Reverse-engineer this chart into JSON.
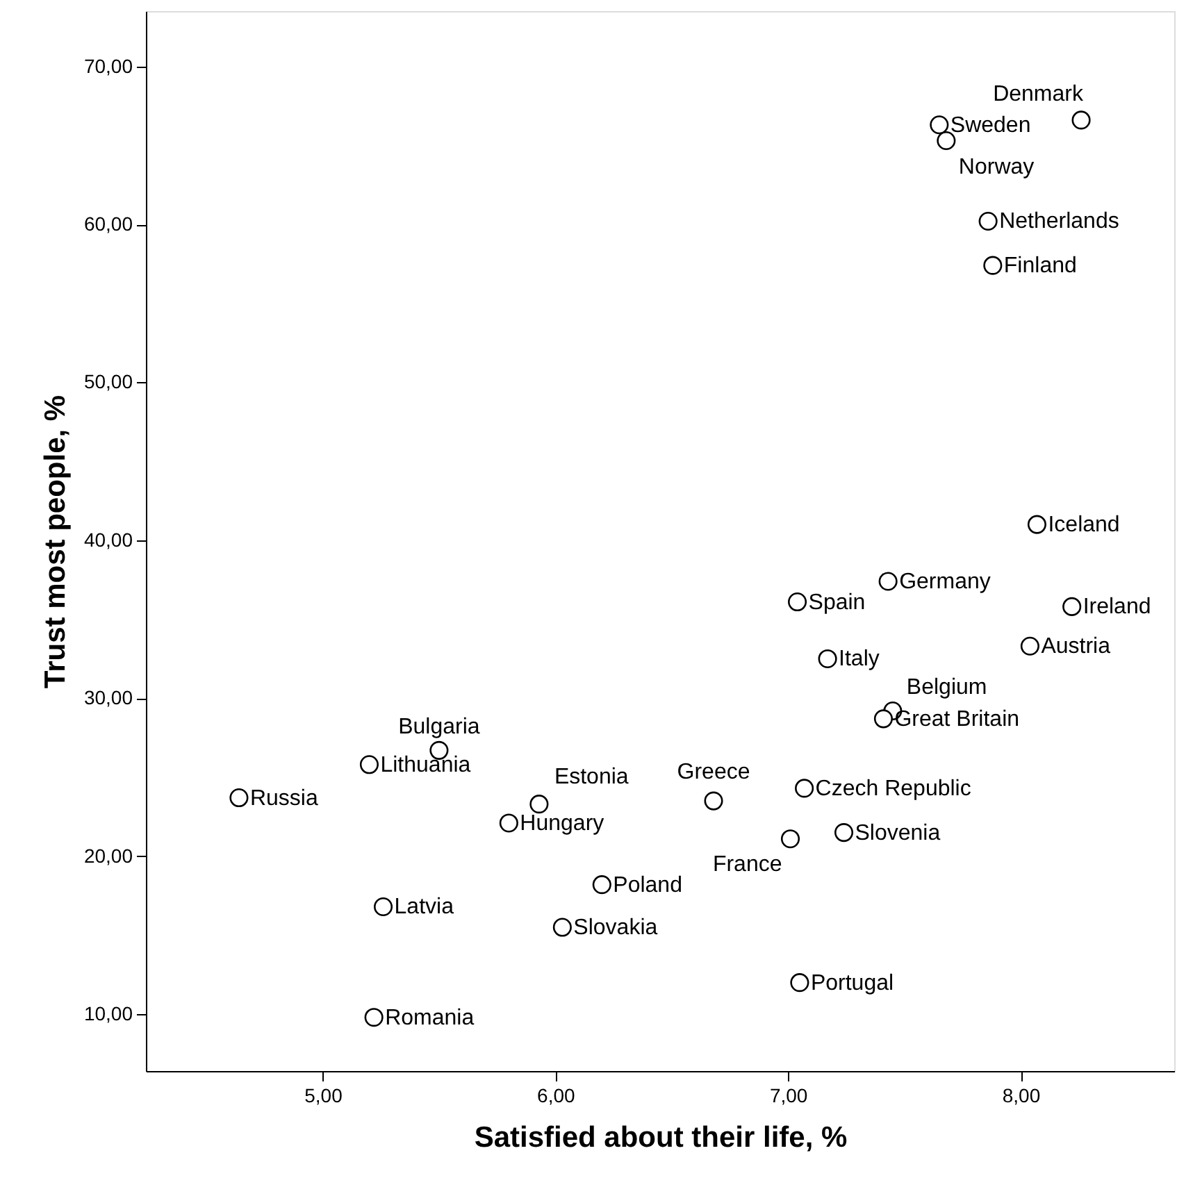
{
  "chart_data": {
    "type": "scatter",
    "xlabel": "Satisfied about their life, %",
    "ylabel": "Trust most people, %",
    "xlim": [
      4.24,
      8.66
    ],
    "ylim": [
      6.4,
      73.5
    ],
    "xticks": [
      {
        "value": 5,
        "label": "5,00"
      },
      {
        "value": 6,
        "label": "6,00"
      },
      {
        "value": 7,
        "label": "7,00"
      },
      {
        "value": 8,
        "label": "8,00"
      }
    ],
    "yticks": [
      {
        "value": 10,
        "label": "10,00"
      },
      {
        "value": 20,
        "label": "20,00"
      },
      {
        "value": 30,
        "label": "30,00"
      },
      {
        "value": 40,
        "label": "40,00"
      },
      {
        "value": 50,
        "label": "50,00"
      },
      {
        "value": 60,
        "label": "60,00"
      },
      {
        "value": 70,
        "label": "70,00"
      }
    ],
    "grid": false,
    "marker": "circle",
    "series": [
      {
        "color": "#000000",
        "x": [
          8.26,
          7.65,
          7.68,
          7.86,
          7.88,
          8.07,
          7.43,
          7.04,
          8.22,
          8.04,
          7.17,
          7.45,
          7.41,
          5.5,
          5.2,
          4.64,
          5.93,
          6.68,
          7.07,
          5.8,
          7.01,
          7.24,
          6.2,
          5.26,
          6.03,
          7.05,
          5.22
        ],
        "values": [
          66.6,
          66.3,
          65.3,
          60.2,
          57.4,
          41.0,
          37.4,
          36.1,
          35.8,
          33.3,
          32.5,
          29.2,
          28.7,
          26.7,
          25.8,
          23.7,
          23.3,
          23.5,
          24.3,
          22.1,
          21.1,
          21.5,
          18.2,
          16.8,
          15.5,
          12.0,
          9.8
        ],
        "value_labels": [
          "Denmark",
          "Sweden",
          "Norway",
          "Netherlands",
          "Finland",
          "Iceland",
          "Germany",
          "Spain",
          "Ireland",
          "Austria",
          "Italy",
          "Belgium",
          "Great Britain",
          "Bulgaria",
          "Lithuania",
          "Russia",
          "Estonia",
          "Greece",
          "Czech Republic",
          "Hungary",
          "France",
          "Slovenia",
          "Poland",
          "Latvia",
          "Slovakia",
          "Portugal",
          "Romania"
        ]
      }
    ]
  }
}
